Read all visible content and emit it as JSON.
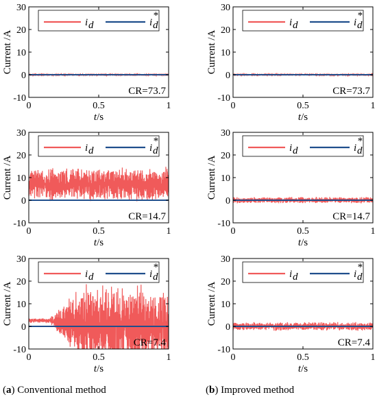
{
  "chart_data": [
    {
      "type": "line",
      "panel": "a1",
      "xlim": [
        0,
        1
      ],
      "ylim": [
        -10,
        30
      ],
      "xticks": [
        "0",
        "0.5",
        "1"
      ],
      "yticks": [
        "30",
        "20",
        "10",
        "0",
        "-10"
      ],
      "xlabel": "t/s",
      "ylabel": "Current /A",
      "annotation": "CR=73.7",
      "series": [
        {
          "name": "i_d",
          "color": "#f05a5a",
          "center": 0,
          "amplitude": 0.5
        },
        {
          "name": "i_d*",
          "color": "#1f4e8c",
          "values": [
            0,
            0
          ]
        }
      ],
      "legend": [
        "i",
        "d",
        "i",
        "d",
        "*"
      ],
      "legend_placement": "top"
    },
    {
      "type": "line",
      "panel": "b1",
      "xlim": [
        0,
        1
      ],
      "ylim": [
        -10,
        30
      ],
      "xticks": [
        "0",
        "0.5",
        "1"
      ],
      "yticks": [
        "30",
        "20",
        "10",
        "0",
        "-10"
      ],
      "xlabel": "t/s",
      "ylabel": "Current /A",
      "annotation": "CR=73.7",
      "series": [
        {
          "name": "i_d",
          "color": "#f05a5a",
          "center": 0,
          "amplitude": 0.5
        },
        {
          "name": "i_d*",
          "color": "#1f4e8c",
          "values": [
            0,
            0
          ]
        }
      ],
      "legend": [
        "i",
        "d",
        "i",
        "d",
        "*"
      ],
      "legend_placement": "top"
    },
    {
      "type": "line",
      "panel": "a2",
      "xlim": [
        0,
        1
      ],
      "ylim": [
        -10,
        30
      ],
      "xticks": [
        "0",
        "0.5",
        "1"
      ],
      "yticks": [
        "30",
        "20",
        "10",
        "0",
        "-10"
      ],
      "xlabel": "t/s",
      "ylabel": "Current /A",
      "annotation": "CR=14.7",
      "series": [
        {
          "name": "i_d",
          "color": "#f05a5a",
          "center": 7,
          "amplitude": 8
        },
        {
          "name": "i_d*",
          "color": "#1f4e8c",
          "values": [
            0,
            0
          ]
        }
      ],
      "legend": [
        "i",
        "d",
        "i",
        "d",
        "*"
      ],
      "legend_placement": "top"
    },
    {
      "type": "line",
      "panel": "b2",
      "xlim": [
        0,
        1
      ],
      "ylim": [
        -10,
        30
      ],
      "xticks": [
        "0",
        "0.5",
        "1"
      ],
      "yticks": [
        "30",
        "20",
        "10",
        "0",
        "-10"
      ],
      "xlabel": "t/s",
      "ylabel": "Current /A",
      "annotation": "CR=14.7",
      "series": [
        {
          "name": "i_d",
          "color": "#f05a5a",
          "center": 0,
          "amplitude": 1.5
        },
        {
          "name": "i_d*",
          "color": "#1f4e8c",
          "values": [
            0,
            0
          ]
        }
      ],
      "legend": [
        "i",
        "d",
        "i",
        "d",
        "*"
      ],
      "legend_placement": "top"
    },
    {
      "type": "line",
      "panel": "a3",
      "xlim": [
        0,
        1
      ],
      "ylim": [
        -10,
        30
      ],
      "xticks": [
        "0",
        "0.5",
        "1"
      ],
      "yticks": [
        "30",
        "20",
        "10",
        "0",
        "-10"
      ],
      "xlabel": "t/s",
      "ylabel": "Current /A",
      "annotation": "CR=7.4",
      "series": [
        {
          "name": "i_d",
          "color": "#f05a5a",
          "center_start": 2.5,
          "growth_start": 0.15,
          "saturation": 0.4,
          "max_amplitude": 20
        },
        {
          "name": "i_d*",
          "color": "#1f4e8c",
          "values": [
            0,
            0
          ]
        }
      ],
      "legend": [
        "i",
        "d",
        "i",
        "d",
        "*"
      ],
      "legend_placement": "top"
    },
    {
      "type": "line",
      "panel": "b3",
      "xlim": [
        0,
        1
      ],
      "ylim": [
        -10,
        30
      ],
      "xticks": [
        "0",
        "0.5",
        "1"
      ],
      "yticks": [
        "30",
        "20",
        "10",
        "0",
        "-10"
      ],
      "xlabel": "t/s",
      "ylabel": "Current /A",
      "annotation": "CR=7.4",
      "series": [
        {
          "name": "i_d",
          "color": "#f05a5a",
          "center": 0,
          "amplitude": 2
        },
        {
          "name": "i_d*",
          "color": "#1f4e8c",
          "values": [
            0,
            0
          ]
        }
      ],
      "legend": [
        "i",
        "d",
        "i",
        "d",
        "*"
      ],
      "legend_placement": "top"
    }
  ],
  "captions": [
    {
      "letter": "a",
      "text": ") Conventional method"
    },
    {
      "letter": "b",
      "text": ") Improved method"
    }
  ]
}
